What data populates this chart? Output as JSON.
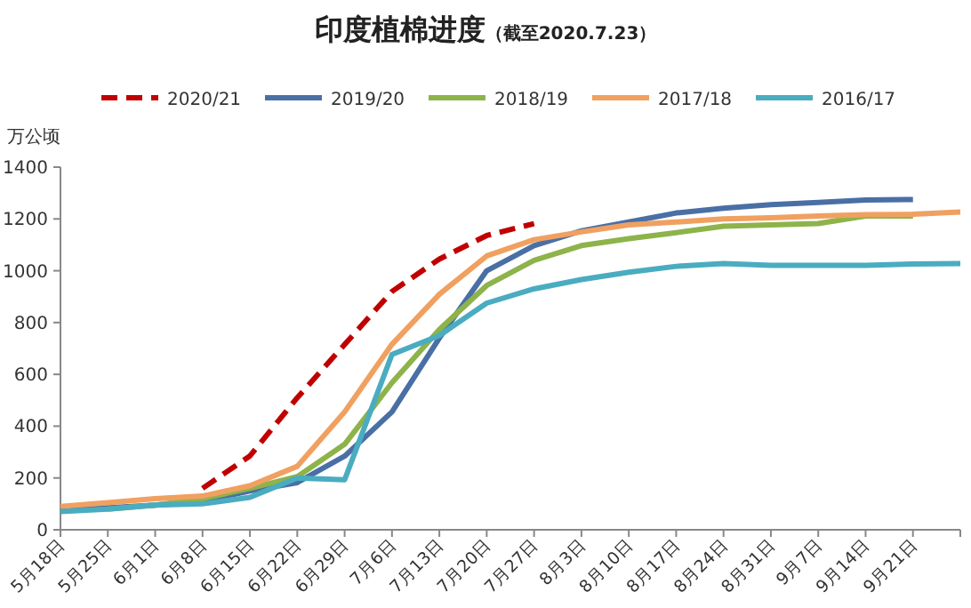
{
  "chart_data": {
    "type": "line",
    "title": "印度植棉进度",
    "subtitle": "（截至2020.7.23）",
    "ylabel": "万公顷",
    "categories": [
      "5月18日",
      "5月25日",
      "6月1日",
      "6月8日",
      "6月15日",
      "6月22日",
      "6月29日",
      "7月6日",
      "7月13日",
      "7月20日",
      "7月27日",
      "8月3日",
      "8月10日",
      "8月17日",
      "8月24日",
      "8月31日",
      "9月7日",
      "9月14日",
      "9月21日",
      null
    ],
    "ylim": [
      0,
      1400
    ],
    "yticks": [
      0,
      200,
      400,
      600,
      800,
      1000,
      1200,
      1400
    ],
    "grid": false,
    "legend": "top",
    "marker": "none",
    "series": [
      {
        "name": "2020/21",
        "color": "#c00000",
        "line_style": "dashed",
        "values": [
          null,
          null,
          null,
          160,
          285,
          510,
          715,
          920,
          1045,
          1136,
          1182,
          null,
          null,
          null,
          null,
          null,
          null,
          null,
          null,
          null
        ]
      },
      {
        "name": "2019/20",
        "color": "#4a6fa5",
        "line_style": "solid",
        "values": [
          75,
          85,
          95,
          110,
          150,
          182,
          284,
          455,
          740,
          1000,
          1097,
          1154,
          1188,
          1223,
          1241,
          1255,
          1264,
          1273,
          1275,
          null
        ]
      },
      {
        "name": "2018/19",
        "color": "#8db34a",
        "line_style": "solid",
        "values": [
          null,
          80,
          95,
          120,
          160,
          205,
          330,
          568,
          773,
          943,
          1040,
          1097,
          1124,
          1147,
          1172,
          1177,
          1182,
          1211,
          1211,
          null
        ]
      },
      {
        "name": "2017/18",
        "color": "#f0a060",
        "line_style": "solid",
        "values": [
          90,
          105,
          120,
          130,
          170,
          245,
          455,
          716,
          909,
          1057,
          1120,
          1150,
          1177,
          1188,
          1200,
          1204,
          1211,
          1216,
          1218,
          1227
        ]
      },
      {
        "name": "2016/17",
        "color": "#4aacc0",
        "line_style": "solid",
        "values": [
          70,
          80,
          95,
          100,
          125,
          200,
          193,
          677,
          750,
          875,
          930,
          966,
          994,
          1017,
          1028,
          1021,
          1021,
          1021,
          1026,
          1028
        ]
      }
    ]
  }
}
